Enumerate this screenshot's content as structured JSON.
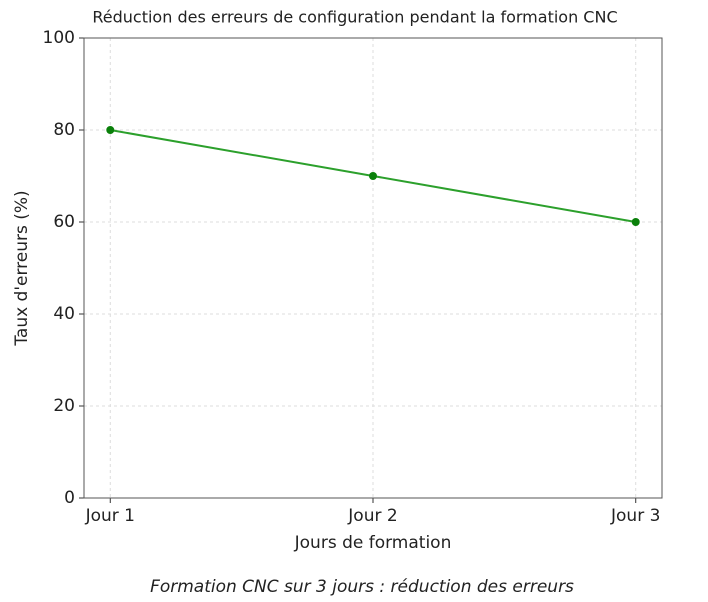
{
  "chart_data": {
    "type": "line",
    "title": "Réduction des erreurs de configuration pendant la formation CNC",
    "x_label": "Jours de formation",
    "y_label": "Taux d'erreurs (%)",
    "caption": "Formation CNC sur 3 jours : réduction des erreurs",
    "categories": [
      "Jour 1",
      "Jour 2",
      "Jour 3"
    ],
    "series": [
      {
        "name": "Taux d'erreurs",
        "color": "#2ca02c",
        "marker_color": "#0a800a",
        "values": [
          80,
          70,
          60
        ]
      }
    ],
    "ylim": [
      0,
      100
    ],
    "yticks": [
      0,
      20,
      40,
      60,
      80,
      100
    ],
    "grid": true
  }
}
